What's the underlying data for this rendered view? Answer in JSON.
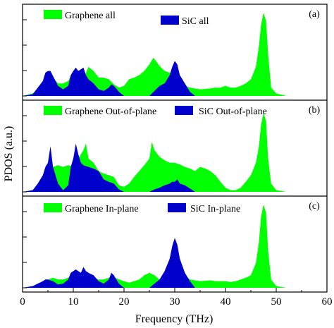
{
  "chart_data": {
    "type": "area",
    "ylabel": "PDOS (a.u.)",
    "xlabel": "Frequency (THz)",
    "xlim": [
      0,
      60
    ],
    "xticks": [
      0,
      10,
      20,
      30,
      40,
      50,
      60
    ],
    "colors": {
      "graphene": "#00ff00",
      "sic": "#0000cc"
    },
    "panels": [
      {
        "tag": "(a)",
        "series": [
          {
            "name": "Graphene all",
            "color": "#00ff00",
            "x": [
              0,
              2,
              3,
              4,
              5,
              6,
              7,
              8,
              9,
              10,
              11,
              12,
              13,
              14,
              15,
              16,
              17,
              18,
              19,
              20,
              21,
              22,
              23,
              24,
              25,
              25.8,
              27,
              28,
              29,
              30,
              31,
              32,
              33,
              35,
              37,
              38,
              39,
              40,
              41,
              42,
              43,
              44,
              45,
              46,
              46.6,
              47,
              47.5,
              48,
              48.4,
              49,
              50,
              52,
              60
            ],
            "values": [
              0,
              0.03,
              0.08,
              0.12,
              0.22,
              0.22,
              0.15,
              0.15,
              0.18,
              0.3,
              0.3,
              0.2,
              0.35,
              0.3,
              0.22,
              0.22,
              0.2,
              0.14,
              0.1,
              0.12,
              0.2,
              0.22,
              0.25,
              0.3,
              0.38,
              0.46,
              0.36,
              0.3,
              0.28,
              0.25,
              0.15,
              0.12,
              0.1,
              0.08,
              0.09,
              0.1,
              0.1,
              0.12,
              0.1,
              0.1,
              0.12,
              0.15,
              0.2,
              0.35,
              0.6,
              0.85,
              1.0,
              0.9,
              0.5,
              0.1,
              0.03,
              0,
              0
            ]
          },
          {
            "name": "SiC all",
            "color": "#0000cc",
            "x": [
              0,
              2,
              3,
              4,
              4.5,
              5,
              5.5,
              6,
              7,
              8,
              9,
              9.5,
              10,
              10.5,
              11,
              11.5,
              12,
              12.5,
              13,
              14,
              15,
              16,
              17,
              17.5,
              18,
              19,
              20,
              25,
              26,
              27,
              28,
              29,
              29.5,
              30,
              30.5,
              31,
              32,
              33,
              34,
              60
            ],
            "values": [
              0,
              0.02,
              0.1,
              0.18,
              0.28,
              0.3,
              0.3,
              0.24,
              0.12,
              0.08,
              0.12,
              0.25,
              0.3,
              0.34,
              0.3,
              0.32,
              0.34,
              0.25,
              0.2,
              0.15,
              0.08,
              0.06,
              0.1,
              0.14,
              0.12,
              0.05,
              0,
              0,
              0.06,
              0.12,
              0.15,
              0.25,
              0.35,
              0.42,
              0.38,
              0.25,
              0.15,
              0.05,
              0,
              0
            ]
          }
        ]
      },
      {
        "tag": "(b)",
        "series": [
          {
            "name": "Graphene Out-of-plane",
            "color": "#00ff00",
            "x": [
              0,
              2,
              3,
              4,
              5,
              6,
              7,
              8,
              9,
              10,
              11,
              12,
              12.5,
              13,
              14,
              15,
              16,
              17,
              18,
              19,
              20,
              21,
              22,
              23,
              24,
              25,
              25.5,
              26,
              27,
              28,
              29,
              30,
              31,
              32,
              33,
              34,
              35,
              36,
              37,
              38,
              39,
              40,
              41,
              42,
              43,
              44,
              45,
              46,
              46.6,
              47,
              47.5,
              48,
              48.4,
              49,
              50,
              52,
              60
            ],
            "values": [
              0,
              0.02,
              0.08,
              0.1,
              0.25,
              0.3,
              0.32,
              0.3,
              0.32,
              0.3,
              0.4,
              0.5,
              0.58,
              0.4,
              0.35,
              0.25,
              0.22,
              0.2,
              0.18,
              0.08,
              0.06,
              0.1,
              0.18,
              0.25,
              0.32,
              0.4,
              0.6,
              0.5,
              0.42,
              0.38,
              0.35,
              0.35,
              0.33,
              0.3,
              0.28,
              0.25,
              0.3,
              0.28,
              0.25,
              0.2,
              0.12,
              0.05,
              0.02,
              0.02,
              0.05,
              0.12,
              0.2,
              0.35,
              0.55,
              0.8,
              0.95,
              0.85,
              0.4,
              0.1,
              0.02,
              0,
              0
            ]
          },
          {
            "name": "SiC Out-of-plane",
            "color": "#0000cc",
            "x": [
              0,
              2,
              3,
              4,
              4.5,
              5,
              5.5,
              6,
              7,
              8,
              9,
              9.5,
              10,
              10.5,
              11,
              11.5,
              12,
              13,
              14,
              15,
              16,
              17,
              18,
              19,
              20,
              25,
              26,
              27,
              28,
              29,
              29.5,
              30,
              30.5,
              31,
              32,
              33,
              34,
              60
            ],
            "values": [
              0,
              0.02,
              0.1,
              0.2,
              0.3,
              0.35,
              0.55,
              0.3,
              0.1,
              0.02,
              0.08,
              0.3,
              0.4,
              0.58,
              0.45,
              0.35,
              0.32,
              0.3,
              0.28,
              0.25,
              0.15,
              0.12,
              0.1,
              0.03,
              0,
              0,
              0.03,
              0.05,
              0.08,
              0.1,
              0.12,
              0.12,
              0.15,
              0.1,
              0.08,
              0.04,
              0,
              0
            ]
          }
        ]
      },
      {
        "tag": "(c)",
        "series": [
          {
            "name": "Graphene In-plane",
            "color": "#00ff00",
            "x": [
              0,
              2,
              3,
              4,
              5,
              6,
              7,
              8,
              9,
              10,
              11,
              12,
              13,
              14,
              15,
              16,
              17,
              18,
              19,
              20,
              21,
              22,
              23,
              24,
              25,
              26,
              27,
              28,
              29,
              30,
              31,
              32,
              33,
              35,
              37,
              38,
              39,
              40,
              41,
              42,
              43,
              44,
              45,
              46,
              46.6,
              47,
              47.5,
              48,
              48.4,
              49,
              50,
              52,
              60
            ],
            "values": [
              0,
              0.02,
              0.05,
              0.06,
              0.1,
              0.12,
              0.1,
              0.1,
              0.12,
              0.16,
              0.18,
              0.18,
              0.16,
              0.12,
              0.1,
              0.1,
              0.12,
              0.13,
              0.1,
              0.08,
              0.06,
              0.08,
              0.1,
              0.15,
              0.18,
              0.15,
              0.1,
              0.08,
              0.1,
              0.12,
              0.2,
              0.15,
              0.1,
              0.08,
              0.09,
              0.08,
              0.08,
              0.08,
              0.07,
              0.08,
              0.1,
              0.12,
              0.15,
              0.3,
              0.55,
              0.85,
              1.0,
              0.9,
              0.45,
              0.1,
              0.02,
              0,
              0
            ]
          },
          {
            "name": "SiC In-plane",
            "color": "#0000cc",
            "x": [
              0,
              2,
              3,
              4,
              4.5,
              5,
              6,
              7,
              8,
              9,
              9.5,
              10,
              10.5,
              11,
              11.5,
              12,
              12.5,
              13,
              14,
              15,
              16,
              17,
              17.5,
              18,
              19,
              20,
              25,
              26,
              27,
              28,
              29,
              29.5,
              30,
              30.5,
              31,
              32,
              33,
              34,
              60
            ],
            "values": [
              0,
              0.02,
              0.05,
              0.08,
              0.1,
              0.1,
              0.08,
              0.04,
              0.05,
              0.1,
              0.18,
              0.2,
              0.22,
              0.2,
              0.18,
              0.25,
              0.2,
              0.18,
              0.15,
              0.08,
              0.05,
              0.1,
              0.18,
              0.15,
              0.05,
              0,
              0,
              0.05,
              0.1,
              0.2,
              0.35,
              0.5,
              0.6,
              0.52,
              0.35,
              0.18,
              0.08,
              0,
              0
            ]
          }
        ]
      }
    ]
  }
}
